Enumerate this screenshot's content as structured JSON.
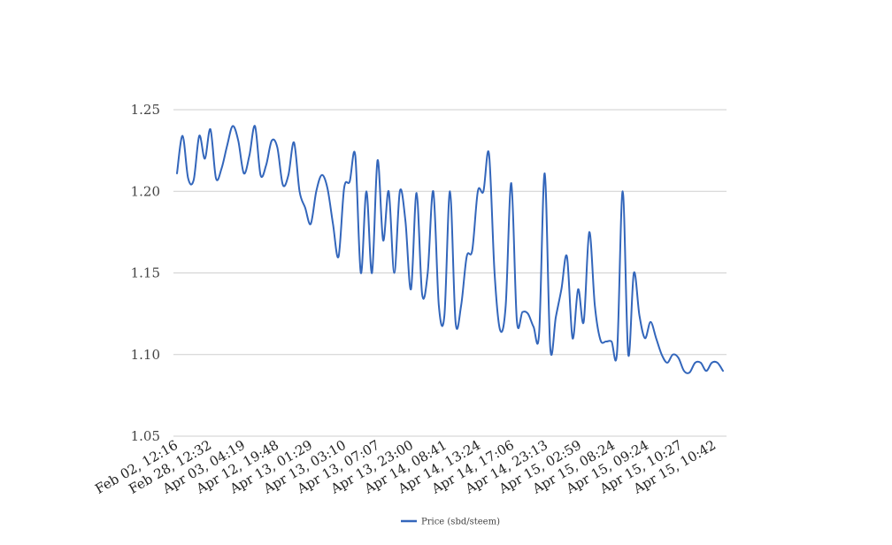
{
  "chart_data": {
    "type": "line",
    "ylim": [
      1.05,
      1.25
    ],
    "y_ticks": [
      "1.25",
      "1.20",
      "1.15",
      "1.10",
      "1.05"
    ],
    "y_tick_values": [
      1.25,
      1.2,
      1.15,
      1.1,
      1.05
    ],
    "x_tick_labels": [
      "Feb 02, 12:16",
      "Feb 28, 12:32",
      "Apr 03, 04:19",
      "Apr 12, 19:48",
      "Apr 13, 01:29",
      "Apr 13, 03:10",
      "Apr 13, 07:07",
      "Apr 13, 23:00",
      "Apr 14, 08:41",
      "Apr 14, 13:24",
      "Apr 14, 17:06",
      "Apr 14, 23:13",
      "Apr 15, 02:59",
      "Apr 15, 08:24",
      "Apr 15, 09:24",
      "Apr 15, 10:27",
      "Apr 15, 10:42"
    ],
    "grid": true,
    "legend_position": "bottom",
    "colors": {
      "line": "#3366bb",
      "grid": "#cfcfcf"
    },
    "series": [
      {
        "name": "Price (sbd/steem)",
        "values": [
          1.211,
          1.234,
          1.208,
          1.207,
          1.234,
          1.22,
          1.238,
          1.208,
          1.214,
          1.228,
          1.24,
          1.231,
          1.211,
          1.222,
          1.24,
          1.21,
          1.216,
          1.231,
          1.227,
          1.204,
          1.21,
          1.23,
          1.2,
          1.19,
          1.18,
          1.2,
          1.21,
          1.202,
          1.18,
          1.16,
          1.202,
          1.206,
          1.222,
          1.15,
          1.2,
          1.15,
          1.219,
          1.17,
          1.2,
          1.15,
          1.2,
          1.182,
          1.14,
          1.199,
          1.137,
          1.15,
          1.2,
          1.13,
          1.124,
          1.2,
          1.12,
          1.13,
          1.16,
          1.164,
          1.2,
          1.2,
          1.223,
          1.15,
          1.115,
          1.13,
          1.205,
          1.121,
          1.126,
          1.125,
          1.117,
          1.113,
          1.211,
          1.104,
          1.123,
          1.14,
          1.16,
          1.11,
          1.14,
          1.12,
          1.175,
          1.13,
          1.109,
          1.108,
          1.108,
          1.102,
          1.2,
          1.1,
          1.15,
          1.124,
          1.11,
          1.12,
          1.11,
          1.1,
          1.095,
          1.1,
          1.098,
          1.09,
          1.089,
          1.095,
          1.095,
          1.09,
          1.095,
          1.095,
          1.09
        ]
      }
    ]
  }
}
